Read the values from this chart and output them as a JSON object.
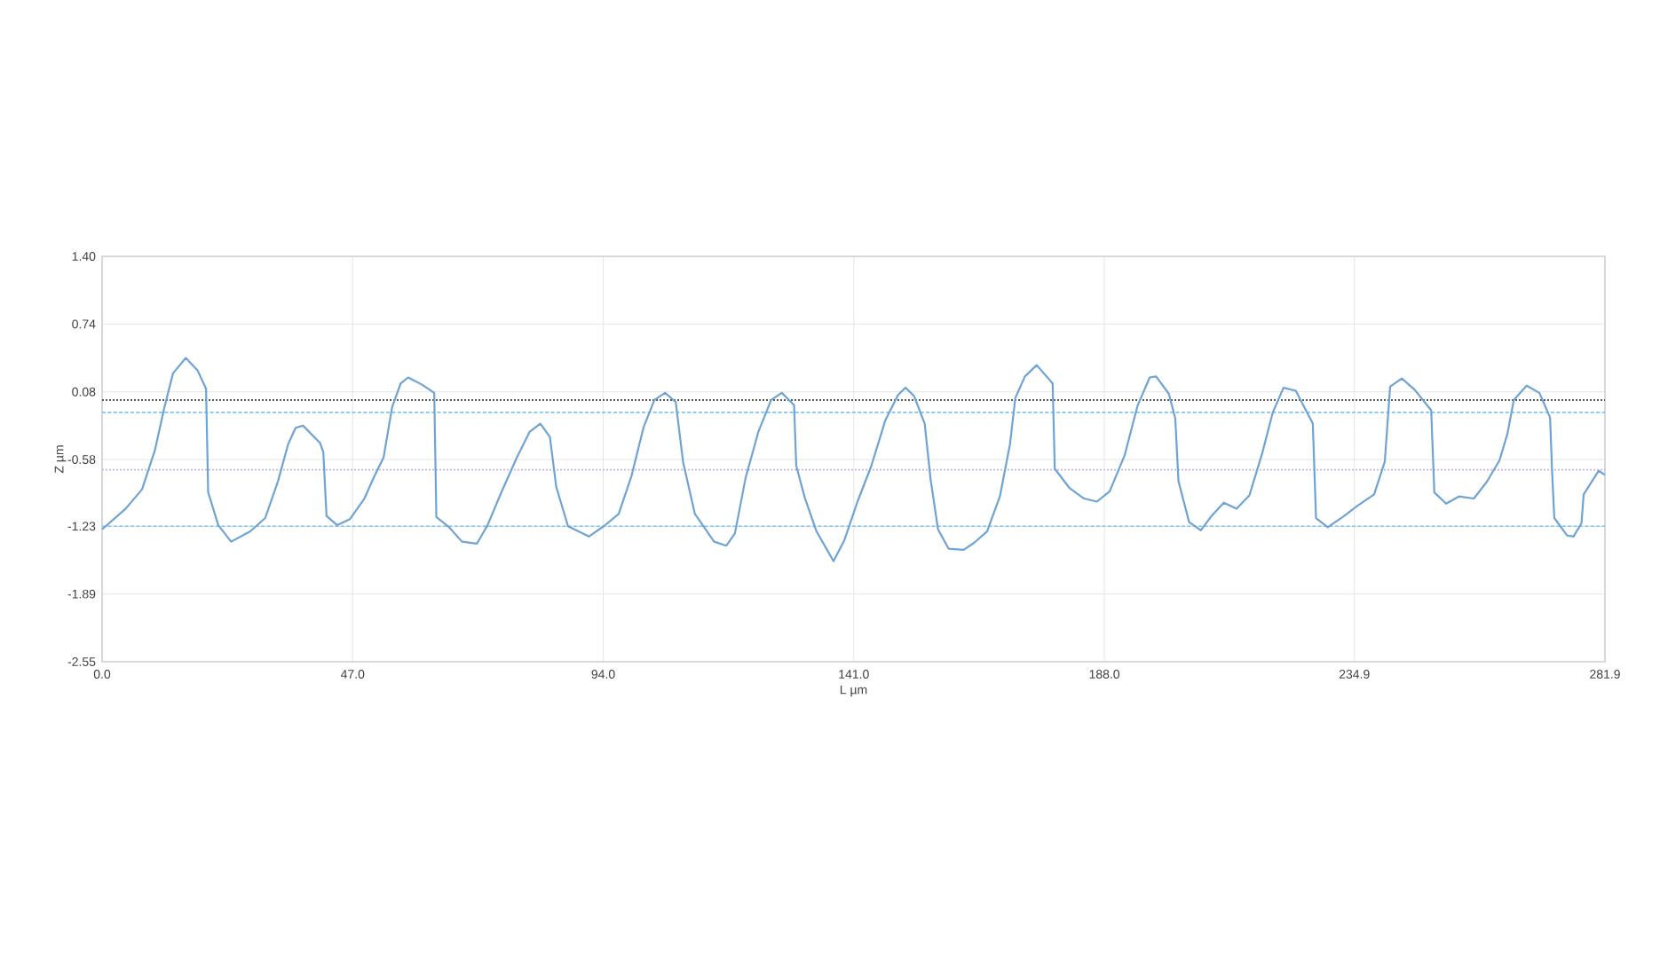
{
  "chart_data": {
    "type": "line",
    "xlabel": "L µm",
    "ylabel": "Z µm",
    "xlim": [
      0,
      281.9
    ],
    "ylim": [
      -2.55,
      1.4
    ],
    "xticks": [
      {
        "value": 0,
        "label": "0.0"
      },
      {
        "value": 47.0,
        "label": "47.0"
      },
      {
        "value": 94.0,
        "label": "94.0"
      },
      {
        "value": 141.0,
        "label": "141.0"
      },
      {
        "value": 188.0,
        "label": "188.0"
      },
      {
        "value": 234.9,
        "label": "234.9"
      },
      {
        "value": 281.9,
        "label": "281.9"
      }
    ],
    "yticks": [
      {
        "value": 1.4,
        "label": "1.40"
      },
      {
        "value": 0.74,
        "label": "0.74"
      },
      {
        "value": 0.08,
        "label": "0.08"
      },
      {
        "value": -0.58,
        "label": "-0.58"
      },
      {
        "value": -1.23,
        "label": "-1.23"
      },
      {
        "value": -1.89,
        "label": "-1.89"
      },
      {
        "value": -2.55,
        "label": "-2.55"
      }
    ],
    "grid": true,
    "ref_lines": [
      {
        "axis": "y",
        "value": 0.0,
        "color": "#222222",
        "line_style": "dotted"
      },
      {
        "axis": "y",
        "value": -0.12,
        "color": "#7fc4ea",
        "line_style": "dashed"
      },
      {
        "axis": "y",
        "value": -0.68,
        "color": "#c9b3ec",
        "line_style": "dotted"
      },
      {
        "axis": "y",
        "value": -1.23,
        "color": "#7fc4ea",
        "line_style": "dashed"
      }
    ],
    "series": [
      {
        "color": "#6fa3d3",
        "x": [
          0,
          4.4,
          7.5,
          9.9,
          11.7,
          13.3,
          15.7,
          17.9,
          19.5,
          19.9,
          21.8,
          24.2,
          27.8,
          30.6,
          33.0,
          34.9,
          36.3,
          37.7,
          40.9,
          41.5,
          42.1,
          44.1,
          46.5,
          49.2,
          51.0,
          52.8,
          54.4,
          56.0,
          57.4,
          60.0,
          62.3,
          62.7,
          65.1,
          67.5,
          70.3,
          72.3,
          74.8,
          77.8,
          80.2,
          82.2,
          84.0,
          85.2,
          87.4,
          91.3,
          94.1,
          96.9,
          99.3,
          101.6,
          103.6,
          105.6,
          107.6,
          109.0,
          111.2,
          114.8,
          117.1,
          118.7,
          120.7,
          123.1,
          125.5,
          127.5,
          129.8,
          130.2,
          131.8,
          134.0,
          137.2,
          139.2,
          141.7,
          144.3,
          146.9,
          149.3,
          150.7,
          152.3,
          154.3,
          155.4,
          156.8,
          158.8,
          161.6,
          163.6,
          166.0,
          168.4,
          170.3,
          171.3,
          173.1,
          175.3,
          177.5,
          178.3,
          178.7,
          181.5,
          184.2,
          186.6,
          189.0,
          191.8,
          194.2,
          196.5,
          197.7,
          200.1,
          201.3,
          201.9,
          203.9,
          206.1,
          208.1,
          210.4,
          212.8,
          215.2,
          217.6,
          219.6,
          221.6,
          223.9,
          225.5,
          227.1,
          227.7,
          229.9,
          232.7,
          235.5,
          238.6,
          240.6,
          241.6,
          243.8,
          246.2,
          249.3,
          249.9,
          252.1,
          254.5,
          257.3,
          259.7,
          262.1,
          263.6,
          264.8,
          267.2,
          269.6,
          271.6,
          272.0,
          272.4,
          274.8,
          276.0,
          277.5,
          277.9,
          280.7,
          281.9
        ],
        "values": [
          -1.26,
          -1.06,
          -0.87,
          -0.49,
          -0.07,
          0.26,
          0.41,
          0.29,
          0.11,
          -0.9,
          -1.22,
          -1.38,
          -1.28,
          -1.15,
          -0.79,
          -0.43,
          -0.27,
          -0.25,
          -0.42,
          -0.51,
          -1.13,
          -1.22,
          -1.16,
          -0.96,
          -0.75,
          -0.56,
          -0.07,
          0.16,
          0.22,
          0.15,
          0.07,
          -1.14,
          -1.24,
          -1.38,
          -1.4,
          -1.22,
          -0.91,
          -0.56,
          -0.31,
          -0.23,
          -0.36,
          -0.85,
          -1.23,
          -1.33,
          -1.23,
          -1.11,
          -0.74,
          -0.26,
          0.0,
          0.07,
          -0.02,
          -0.61,
          -1.11,
          -1.38,
          -1.42,
          -1.3,
          -0.76,
          -0.31,
          0.0,
          0.07,
          -0.05,
          -0.64,
          -0.95,
          -1.28,
          -1.57,
          -1.37,
          -0.99,
          -0.64,
          -0.2,
          0.05,
          0.12,
          0.04,
          -0.23,
          -0.77,
          -1.26,
          -1.45,
          -1.46,
          -1.39,
          -1.28,
          -0.94,
          -0.43,
          0.02,
          0.23,
          0.34,
          0.21,
          0.16,
          -0.67,
          -0.86,
          -0.96,
          -0.99,
          -0.89,
          -0.54,
          -0.06,
          0.22,
          0.23,
          0.06,
          -0.18,
          -0.79,
          -1.19,
          -1.27,
          -1.13,
          -1.0,
          -1.06,
          -0.93,
          -0.52,
          -0.12,
          0.12,
          0.09,
          -0.07,
          -0.23,
          -1.15,
          -1.24,
          -1.14,
          -1.03,
          -0.92,
          -0.6,
          0.13,
          0.21,
          0.1,
          -0.1,
          -0.9,
          -1.01,
          -0.94,
          -0.96,
          -0.8,
          -0.59,
          -0.33,
          0.0,
          0.14,
          0.07,
          -0.17,
          -0.72,
          -1.15,
          -1.32,
          -1.33,
          -1.2,
          -0.92,
          -0.69,
          -0.73
        ]
      }
    ]
  }
}
